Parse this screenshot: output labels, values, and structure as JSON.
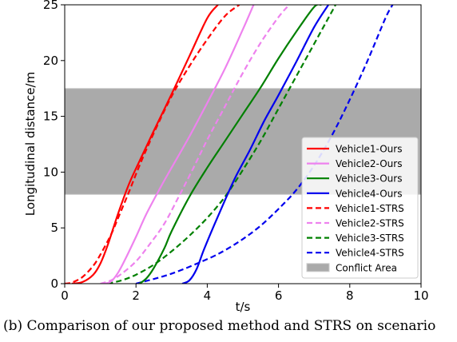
{
  "chart_data": {
    "type": "line",
    "title": "",
    "xlabel": "t/s",
    "ylabel": "Longitudinal distance/m",
    "xlim": [
      0,
      10
    ],
    "ylim": [
      0,
      25
    ],
    "xticks": [
      "0",
      "2",
      "4",
      "6",
      "8",
      "10"
    ],
    "yticks": [
      "0",
      "5",
      "10",
      "15",
      "20",
      "25"
    ],
    "grid": false,
    "legend_position": "bottom-right",
    "conflict_area": {
      "name": "Conflict Area",
      "y_range": [
        8,
        17.5
      ],
      "color": "#aaaaaa"
    },
    "series": [
      {
        "name": "Vehicle1-Ours",
        "color": "#ff0000",
        "dash": "solid",
        "x": [
          0.2,
          0.5,
          0.8,
          1.0,
          1.2,
          1.5,
          1.8,
          2.1,
          2.5,
          3.0,
          3.5,
          4.0,
          4.3
        ],
        "y": [
          0,
          0.15,
          0.8,
          1.8,
          3.4,
          6.3,
          8.9,
          11.0,
          13.7,
          17.0,
          20.4,
          23.8,
          25.0
        ]
      },
      {
        "name": "Vehicle2-Ours",
        "color": "#ee82ee",
        "dash": "solid",
        "x": [
          1.1,
          1.3,
          1.5,
          1.7,
          2.0,
          2.3,
          2.7,
          3.0,
          3.5,
          4.0,
          4.5,
          5.0,
          5.3
        ],
        "y": [
          0,
          0.2,
          1.0,
          2.2,
          4.2,
          6.3,
          8.7,
          10.4,
          13.2,
          16.2,
          19.3,
          22.8,
          25.0
        ]
      },
      {
        "name": "Vehicle3-Ours",
        "color": "#008000",
        "dash": "solid",
        "x": [
          2.1,
          2.3,
          2.5,
          2.8,
          3.0,
          3.5,
          4.0,
          4.5,
          5.0,
          5.5,
          6.0,
          6.5,
          7.0,
          7.2
        ],
        "y": [
          0,
          0.5,
          1.4,
          3.2,
          4.7,
          7.8,
          10.4,
          12.8,
          15.2,
          17.6,
          20.2,
          22.6,
          24.8,
          25.0
        ]
      },
      {
        "name": "Vehicle4-Ours",
        "color": "#0000ee",
        "dash": "solid",
        "x": [
          3.3,
          3.5,
          3.7,
          3.9,
          4.2,
          4.5,
          4.8,
          5.2,
          5.6,
          6.0,
          6.5,
          7.0,
          7.4
        ],
        "y": [
          0,
          0.3,
          1.3,
          3.0,
          5.3,
          7.5,
          9.6,
          12.0,
          14.6,
          16.9,
          19.9,
          23.0,
          25.0
        ]
      },
      {
        "name": "Vehicle1-STRS",
        "color": "#ff0000",
        "dash": "dashed",
        "x": [
          0,
          0.2,
          0.5,
          0.8,
          1.0,
          1.3,
          1.5,
          1.8,
          2.1,
          2.5,
          3.0,
          3.5,
          4.0,
          4.5,
          4.9
        ],
        "y": [
          0,
          0.1,
          0.6,
          1.6,
          2.6,
          4.4,
          5.9,
          8.2,
          10.6,
          13.5,
          16.8,
          19.5,
          21.9,
          24.0,
          25.0
        ]
      },
      {
        "name": "Vehicle2-STRS",
        "color": "#ee82ee",
        "dash": "dashed",
        "x": [
          1.0,
          1.3,
          1.6,
          2.0,
          2.4,
          2.8,
          3.2,
          3.6,
          4.0,
          4.5,
          5.0,
          5.5,
          6.0,
          6.3
        ],
        "y": [
          0,
          0.3,
          0.9,
          2.0,
          3.6,
          5.4,
          7.8,
          10.3,
          12.9,
          15.9,
          18.9,
          21.6,
          23.9,
          25.0
        ]
      },
      {
        "name": "Vehicle3-STRS",
        "color": "#008000",
        "dash": "dashed",
        "x": [
          1.2,
          1.6,
          2.0,
          2.5,
          3.0,
          3.5,
          4.0,
          4.5,
          5.0,
          5.5,
          6.0,
          6.5,
          7.0,
          7.5,
          7.6
        ],
        "y": [
          0,
          0.3,
          0.8,
          1.7,
          2.9,
          4.3,
          5.9,
          7.8,
          10.2,
          12.8,
          15.7,
          18.6,
          21.5,
          24.4,
          25.0
        ]
      },
      {
        "name": "Vehicle4-STRS",
        "color": "#0000ee",
        "dash": "dashed",
        "x": [
          2.0,
          3.0,
          4.0,
          4.5,
          5.0,
          5.5,
          6.0,
          6.5,
          7.0,
          7.5,
          8.0,
          8.5,
          9.0,
          9.2
        ],
        "y": [
          0,
          0.9,
          2.2,
          3.0,
          4.0,
          5.2,
          6.7,
          8.4,
          10.6,
          13.3,
          16.5,
          20.0,
          23.8,
          25.0
        ]
      }
    ]
  },
  "caption": "(b) Comparison of our proposed method and STRS on scenario"
}
